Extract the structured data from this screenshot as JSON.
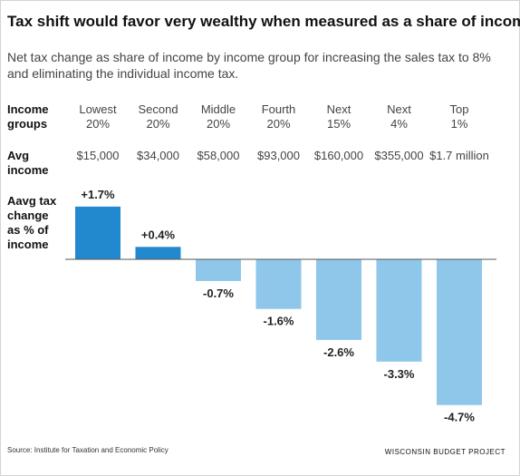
{
  "title": "Tax shift would favor very wealthy when measured as a share of income",
  "subtitle": "Net tax change as share of income by income group for increasing the sales tax to 8% and eliminating the individual income tax.",
  "row_labels": {
    "income_groups": [
      "Income",
      "groups"
    ],
    "avg_income": [
      "Avg",
      "income"
    ],
    "tax_change": [
      "Aavg tax",
      "change",
      "as % of",
      "income"
    ]
  },
  "source": "Source: Institute for Taxation and Economic Policy",
  "brand": "WISCONSIN BUDGET PROJECT",
  "colors": {
    "positive": "#2389cf",
    "negative": "#8ec7ea",
    "axis": "#555555"
  },
  "chart_data": {
    "type": "bar",
    "categories": [
      "Lowest 20%",
      "Second 20%",
      "Middle 20%",
      "Fourth 20%",
      "Next 15%",
      "Next 4%",
      "Top 1%"
    ],
    "group_lines": [
      [
        "Lowest",
        "20%"
      ],
      [
        "Second",
        "20%"
      ],
      [
        "Middle",
        "20%"
      ],
      [
        "Fourth",
        "20%"
      ],
      [
        "Next",
        "15%"
      ],
      [
        "Next",
        "4%"
      ],
      [
        "Top",
        "1%"
      ]
    ],
    "avg_income": [
      "$15,000",
      "$34,000",
      "$58,000",
      "$93,000",
      "$160,000",
      "$355,000",
      "$1.7 million"
    ],
    "values": [
      1.7,
      0.4,
      -0.7,
      -1.6,
      -2.6,
      -3.3,
      -4.7
    ],
    "value_labels": [
      "+1.7%",
      "+0.4%",
      "-0.7%",
      "-1.6%",
      "-2.6%",
      "-3.3%",
      "-4.7%"
    ],
    "title": "Tax shift would favor very wealthy when measured as a share of income",
    "ylabel": "Aavg tax change as % of income",
    "ylim": [
      -4.7,
      1.7
    ],
    "grid": false
  }
}
